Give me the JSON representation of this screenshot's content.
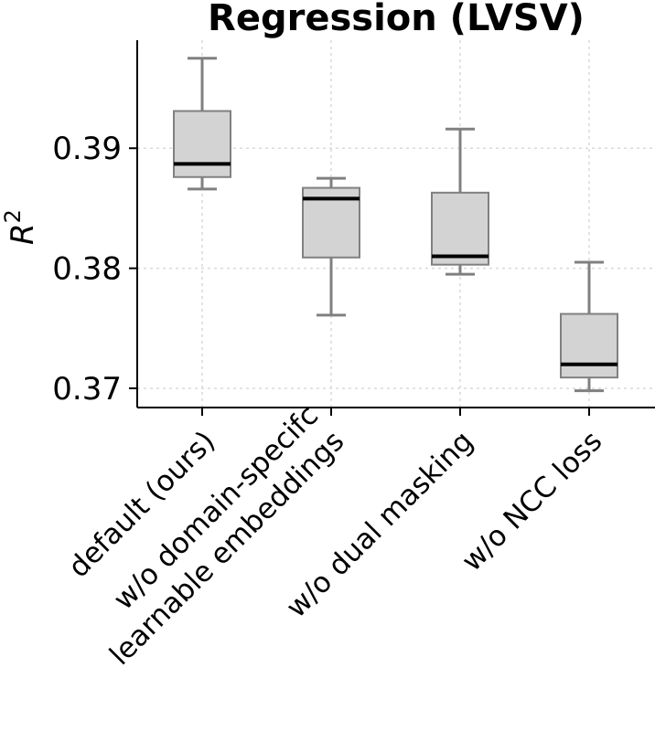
{
  "chart_data": {
    "type": "box",
    "title": "Regression (LVSV)",
    "ylabel_main": "R",
    "ylabel_sup": "2",
    "xlabel": "",
    "ylim": [
      0.3684,
      0.399
    ],
    "yticks": [
      0.37,
      0.38,
      0.39
    ],
    "ytick_labels": [
      "0.37",
      "0.38",
      "0.39"
    ],
    "grid": true,
    "categories": [
      [
        "default (ours)"
      ],
      [
        "w/o domain-specifc",
        "learnable embeddings"
      ],
      [
        "w/o dual masking"
      ],
      [
        "w/o NCC loss"
      ]
    ],
    "boxes": [
      {
        "whisker_low": 0.3866,
        "q1": 0.3876,
        "median": 0.3887,
        "q3": 0.3931,
        "whisker_high": 0.3975
      },
      {
        "whisker_low": 0.3761,
        "q1": 0.3809,
        "median": 0.3858,
        "q3": 0.3867,
        "whisker_high": 0.3875
      },
      {
        "whisker_low": 0.3795,
        "q1": 0.3803,
        "median": 0.381,
        "q3": 0.3863,
        "whisker_high": 0.3916
      },
      {
        "whisker_low": 0.3698,
        "q1": 0.3709,
        "median": 0.372,
        "q3": 0.3762,
        "whisker_high": 0.3805
      }
    ],
    "colors": {
      "box_fill": "#d3d3d3",
      "box_edge": "#808080",
      "median": "#000000",
      "whisker": "#808080",
      "grid": "#d9d9d9",
      "axis": "#000000"
    }
  }
}
